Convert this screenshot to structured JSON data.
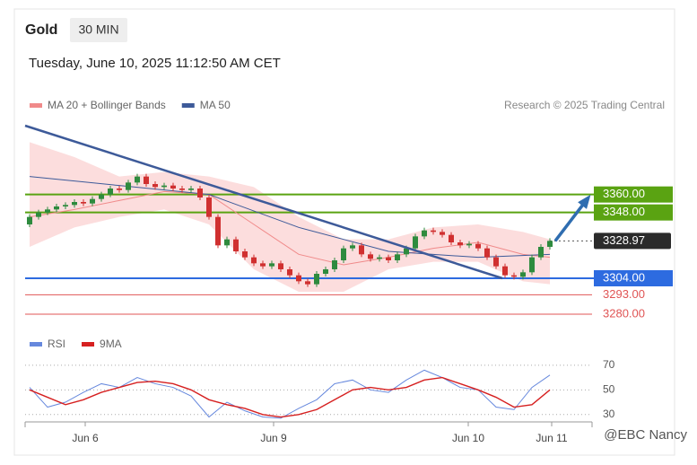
{
  "chart_data": {
    "type": "candlestick",
    "title": "Gold",
    "timeframe": "30 MIN",
    "subtitle": "Tuesday, June 10, 2025 11:12:50 AM CET",
    "source": "Research © 2025 Trading Central",
    "watermark": "@EBC Nancy",
    "xlim": [
      -0.5,
      62.7
    ],
    "ylim": [
      3274,
      3406
    ],
    "xticks": [
      {
        "value": 6.2,
        "label": "Jun 6"
      },
      {
        "value": 27.2,
        "label": "Jun 9"
      },
      {
        "value": 48.9,
        "label": "Jun 10"
      },
      {
        "value": 58.2,
        "label": "Jun 11"
      }
    ],
    "up_color": "#2e8b3e",
    "down_color": "#d03030",
    "open": [
      3340,
      3345,
      3348,
      3350,
      3352,
      3353,
      3355,
      3354,
      3357,
      3360,
      3364,
      3363,
      3368,
      3372,
      3367,
      3365,
      3366,
      3364,
      3363,
      3364,
      3358,
      3345,
      3326,
      3330,
      3322,
      3318,
      3314,
      3312,
      3314,
      3310,
      3306,
      3302,
      3300,
      3307,
      3310,
      3316,
      3324,
      3326,
      3320,
      3317,
      3318,
      3316,
      3320,
      3324,
      3332,
      3336,
      3335,
      3333,
      3328,
      3326,
      3327,
      3324,
      3318,
      3312,
      3306,
      3305,
      3308,
      3318,
      3325
    ],
    "close": [
      3345,
      3348,
      3350,
      3352,
      3353,
      3355,
      3354,
      3357,
      3360,
      3364,
      3363,
      3368,
      3372,
      3367,
      3365,
      3366,
      3364,
      3363,
      3364,
      3358,
      3345,
      3326,
      3330,
      3322,
      3318,
      3314,
      3312,
      3314,
      3310,
      3306,
      3302,
      3300,
      3307,
      3310,
      3316,
      3324,
      3326,
      3320,
      3317,
      3318,
      3316,
      3320,
      3324,
      3332,
      3336,
      3335,
      3333,
      3328,
      3326,
      3327,
      3324,
      3318,
      3312,
      3306,
      3305,
      3308,
      3318,
      3325,
      3329
    ],
    "bands": {
      "x": [
        0,
        5,
        10,
        15,
        20,
        25,
        30,
        35,
        40,
        45,
        50,
        55,
        58
      ],
      "upper": [
        3395,
        3385,
        3372,
        3375,
        3372,
        3365,
        3345,
        3330,
        3330,
        3338,
        3340,
        3335,
        3330
      ],
      "lower": [
        3325,
        3338,
        3345,
        3350,
        3340,
        3310,
        3295,
        3295,
        3310,
        3315,
        3315,
        3302,
        3300
      ],
      "color": "#fbd5d5"
    },
    "series": [
      {
        "name": "MA 20 + Bollinger Bands",
        "color": "#f08a8a",
        "x": [
          0,
          5,
          10,
          15,
          20,
          25,
          30,
          35,
          40,
          45,
          50,
          55,
          58
        ],
        "values": [
          3345,
          3350,
          3356,
          3362,
          3360,
          3340,
          3320,
          3313,
          3318,
          3324,
          3328,
          3320,
          3318
        ]
      },
      {
        "name": "MA 50",
        "color": "#3d5a99",
        "x": [
          0,
          10,
          20,
          30,
          40,
          50,
          58
        ],
        "values": [
          3372,
          3366,
          3360,
          3338,
          3322,
          3318,
          3320
        ]
      }
    ],
    "trendline": {
      "x": [
        -0.5,
        52.7
      ],
      "values": [
        3406,
        3304
      ],
      "color": "#3d5a99"
    },
    "arrow": {
      "x": [
        58.6,
        62.3
      ],
      "values": [
        3329,
        3358
      ],
      "color": "#2f6db0"
    },
    "levels": [
      {
        "value": 3360,
        "label": "3360.00",
        "color": "#5aa312",
        "kind": "box"
      },
      {
        "value": 3348,
        "label": "3348.00",
        "color": "#5aa312",
        "kind": "box"
      },
      {
        "value": 3328.97,
        "label": "3328.97",
        "color": "#2b2b2b",
        "kind": "price"
      },
      {
        "value": 3304,
        "label": "3304.00",
        "color": "#2d6be0",
        "kind": "box"
      },
      {
        "value": 3293,
        "label": "3293.00",
        "color": "#e05555",
        "kind": "text"
      },
      {
        "value": 3280,
        "label": "3280.00",
        "color": "#e05555",
        "kind": "text"
      }
    ],
    "rsi": {
      "ylim": [
        24,
        75
      ],
      "yticks": [
        30,
        50,
        70
      ],
      "series": [
        {
          "name": "RSI",
          "color": "#6688dd",
          "x": [
            0,
            2,
            4,
            6,
            8,
            10,
            12,
            14,
            16,
            18,
            20,
            22,
            24,
            26,
            28,
            30,
            32,
            34,
            36,
            38,
            40,
            42,
            44,
            46,
            48,
            50,
            52,
            54,
            56,
            58
          ],
          "values": [
            52,
            36,
            40,
            48,
            55,
            52,
            60,
            55,
            52,
            45,
            28,
            40,
            33,
            28,
            27,
            35,
            42,
            55,
            58,
            50,
            48,
            58,
            66,
            60,
            52,
            50,
            36,
            34,
            52,
            62
          ]
        },
        {
          "name": "9MA",
          "color": "#d62020",
          "x": [
            0,
            2,
            4,
            6,
            8,
            10,
            12,
            14,
            16,
            18,
            20,
            22,
            24,
            26,
            28,
            30,
            32,
            34,
            36,
            38,
            40,
            42,
            44,
            46,
            48,
            50,
            52,
            54,
            56,
            58
          ],
          "values": [
            50,
            44,
            38,
            42,
            48,
            52,
            56,
            57,
            55,
            50,
            42,
            38,
            35,
            30,
            28,
            30,
            34,
            42,
            50,
            52,
            50,
            52,
            58,
            60,
            55,
            50,
            44,
            36,
            38,
            50
          ]
        }
      ]
    }
  }
}
